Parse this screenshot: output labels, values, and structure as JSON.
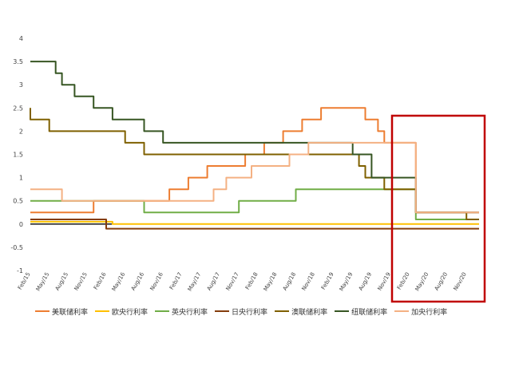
{
  "chart_data": {
    "type": "line",
    "title": "",
    "xlabel": "",
    "ylabel": "",
    "ylim": [
      -1,
      4
    ],
    "yticks": [
      "4",
      "3.5",
      "3",
      "2.5",
      "2",
      "1.5",
      "1",
      "0.5",
      "0",
      "-0.5",
      "-1"
    ],
    "x_tick_labels": [
      "Feb/15",
      "May/15",
      "Aug/15",
      "Nov/15",
      "Feb/16",
      "May/16",
      "Aug/16",
      "Nov/16",
      "Feb/17",
      "May/17",
      "Aug/17",
      "Nov/17",
      "Feb/18",
      "May/18",
      "Aug/18",
      "Nov/18",
      "Feb/19",
      "May/19",
      "Aug/19",
      "Nov/19",
      "Feb/20",
      "May/20",
      "Aug/20",
      "Nov/20"
    ],
    "x_start": "2015-02",
    "x_end": "2021-01",
    "grid": false,
    "legend_position": "bottom",
    "highlight_box": {
      "from": "2019-10",
      "to": "2021-01",
      "color": "#c00000"
    },
    "series": [
      {
        "name": "美联储利率",
        "color": "#ed7d31",
        "points": [
          [
            "2015-02",
            0.25
          ],
          [
            "2015-12",
            0.25
          ],
          [
            "2015-12",
            0.5
          ],
          [
            "2016-12",
            0.5
          ],
          [
            "2016-12",
            0.75
          ],
          [
            "2017-03",
            0.75
          ],
          [
            "2017-03",
            1.0
          ],
          [
            "2017-06",
            1.0
          ],
          [
            "2017-06",
            1.25
          ],
          [
            "2017-12",
            1.25
          ],
          [
            "2017-12",
            1.5
          ],
          [
            "2018-03",
            1.5
          ],
          [
            "2018-03",
            1.75
          ],
          [
            "2018-06",
            1.75
          ],
          [
            "2018-06",
            2.0
          ],
          [
            "2018-09",
            2.0
          ],
          [
            "2018-09",
            2.25
          ],
          [
            "2018-12",
            2.25
          ],
          [
            "2018-12",
            2.5
          ],
          [
            "2019-07",
            2.5
          ],
          [
            "2019-07",
            2.25
          ],
          [
            "2019-09",
            2.25
          ],
          [
            "2019-09",
            2.0
          ],
          [
            "2019-10",
            2.0
          ],
          [
            "2019-10",
            1.75
          ],
          [
            "2020-03",
            1.75
          ],
          [
            "2020-03",
            0.25
          ],
          [
            "2021-01",
            0.25
          ]
        ]
      },
      {
        "name": "欧央行利率",
        "color": "#ffc000",
        "points": [
          [
            "2015-02",
            0.05
          ],
          [
            "2016-03",
            0.05
          ],
          [
            "2016-03",
            0.0
          ],
          [
            "2021-01",
            0.0
          ]
        ]
      },
      {
        "name": "英央行利率",
        "color": "#70ad47",
        "points": [
          [
            "2015-02",
            0.5
          ],
          [
            "2016-08",
            0.5
          ],
          [
            "2016-08",
            0.25
          ],
          [
            "2017-11",
            0.25
          ],
          [
            "2017-11",
            0.5
          ],
          [
            "2018-08",
            0.5
          ],
          [
            "2018-08",
            0.75
          ],
          [
            "2020-03",
            0.75
          ],
          [
            "2020-03",
            0.1
          ],
          [
            "2021-01",
            0.1
          ]
        ]
      },
      {
        "name": "日央行利率",
        "color": "#843c0c",
        "points": [
          [
            "2015-02",
            0.1
          ],
          [
            "2016-02",
            0.1
          ],
          [
            "2016-02",
            -0.1
          ],
          [
            "2021-01",
            -0.1
          ]
        ]
      },
      {
        "name": "澳联储利率",
        "color": "#7f6000",
        "points": [
          [
            "2015-02",
            2.5
          ],
          [
            "2015-02",
            2.25
          ],
          [
            "2015-05",
            2.25
          ],
          [
            "2015-05",
            2.0
          ],
          [
            "2016-05",
            2.0
          ],
          [
            "2016-05",
            1.75
          ],
          [
            "2016-08",
            1.75
          ],
          [
            "2016-08",
            1.5
          ],
          [
            "2019-06",
            1.5
          ],
          [
            "2019-06",
            1.25
          ],
          [
            "2019-07",
            1.25
          ],
          [
            "2019-07",
            1.0
          ],
          [
            "2019-10",
            1.0
          ],
          [
            "2019-10",
            0.75
          ],
          [
            "2020-03",
            0.75
          ],
          [
            "2020-03",
            0.25
          ],
          [
            "2020-11",
            0.25
          ],
          [
            "2020-11",
            0.1
          ],
          [
            "2021-01",
            0.1
          ]
        ]
      },
      {
        "name": "纽联储利率",
        "color": "#375623",
        "points": [
          [
            "2015-02",
            3.5
          ],
          [
            "2015-06",
            3.5
          ],
          [
            "2015-06",
            3.25
          ],
          [
            "2015-07",
            3.25
          ],
          [
            "2015-07",
            3.0
          ],
          [
            "2015-09",
            3.0
          ],
          [
            "2015-09",
            2.75
          ],
          [
            "2015-12",
            2.75
          ],
          [
            "2015-12",
            2.5
          ],
          [
            "2016-03",
            2.5
          ],
          [
            "2016-03",
            2.25
          ],
          [
            "2016-08",
            2.25
          ],
          [
            "2016-08",
            2.0
          ],
          [
            "2016-11",
            2.0
          ],
          [
            "2016-11",
            1.75
          ],
          [
            "2019-05",
            1.75
          ],
          [
            "2019-05",
            1.5
          ],
          [
            "2019-08",
            1.5
          ],
          [
            "2019-08",
            1.0
          ],
          [
            "2020-03",
            1.0
          ],
          [
            "2020-03",
            0.25
          ],
          [
            "2021-01",
            0.25
          ]
        ]
      },
      {
        "name": "加央行利率",
        "color": "#f4b183",
        "points": [
          [
            "2015-02",
            0.75
          ],
          [
            "2015-07",
            0.75
          ],
          [
            "2015-07",
            0.5
          ],
          [
            "2017-07",
            0.5
          ],
          [
            "2017-07",
            0.75
          ],
          [
            "2017-09",
            0.75
          ],
          [
            "2017-09",
            1.0
          ],
          [
            "2018-01",
            1.0
          ],
          [
            "2018-01",
            1.25
          ],
          [
            "2018-07",
            1.25
          ],
          [
            "2018-07",
            1.5
          ],
          [
            "2018-10",
            1.5
          ],
          [
            "2018-10",
            1.75
          ],
          [
            "2020-03",
            1.75
          ],
          [
            "2020-03",
            0.25
          ],
          [
            "2021-01",
            0.25
          ]
        ]
      }
    ]
  }
}
